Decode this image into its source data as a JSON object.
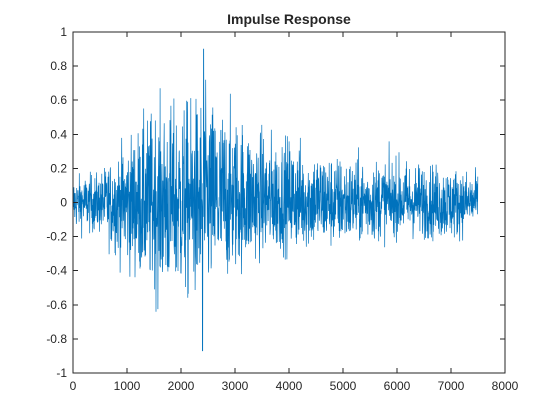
{
  "chart_data": {
    "type": "line",
    "title": "Impulse Response",
    "xlabel": "",
    "ylabel": "",
    "xlim": [
      0,
      8000
    ],
    "ylim": [
      -1,
      1
    ],
    "xticks": [
      0,
      1000,
      2000,
      3000,
      4000,
      5000,
      6000,
      7000,
      8000
    ],
    "xtick_labels": [
      "0",
      "1000",
      "2000",
      "3000",
      "4000",
      "5000",
      "6000",
      "7000",
      "8000"
    ],
    "yticks": [
      -1,
      -0.8,
      -0.6,
      -0.4,
      -0.2,
      0,
      0.2,
      0.4,
      0.6,
      0.8,
      1
    ],
    "ytick_labels": [
      "-1",
      "-0.8",
      "-0.6",
      "-0.4",
      "-0.2",
      "0",
      "0.2",
      "0.4",
      "0.6",
      "0.8",
      "1"
    ],
    "grid": false,
    "legend": "none",
    "series_color": "#0072BD",
    "series": [
      {
        "name": "",
        "description_of_envelope": null,
        "x_range": [
          1,
          7500
        ],
        "peak_max": 0.9,
        "peak_max_x": 2420,
        "peak_min": -0.87,
        "peak_min_x": 2400,
        "envelope": [
          {
            "x": 0,
            "upper": 0.22,
            "lower": -0.23
          },
          {
            "x": 500,
            "upper": 0.25,
            "lower": -0.27
          },
          {
            "x": 1000,
            "upper": 0.52,
            "lower": -0.55
          },
          {
            "x": 1500,
            "upper": 0.78,
            "lower": -0.77
          },
          {
            "x": 2000,
            "upper": 0.82,
            "lower": -0.82
          },
          {
            "x": 2400,
            "upper": 0.9,
            "lower": -0.87
          },
          {
            "x": 3000,
            "upper": 0.75,
            "lower": -0.58
          },
          {
            "x": 3500,
            "upper": 0.6,
            "lower": -0.45
          },
          {
            "x": 4000,
            "upper": 0.55,
            "lower": -0.4
          },
          {
            "x": 5000,
            "upper": 0.38,
            "lower": -0.38
          },
          {
            "x": 6000,
            "upper": 0.37,
            "lower": -0.28
          },
          {
            "x": 7000,
            "upper": 0.3,
            "lower": -0.33
          },
          {
            "x": 7500,
            "upper": 0.25,
            "lower": -0.2
          }
        ]
      }
    ]
  }
}
